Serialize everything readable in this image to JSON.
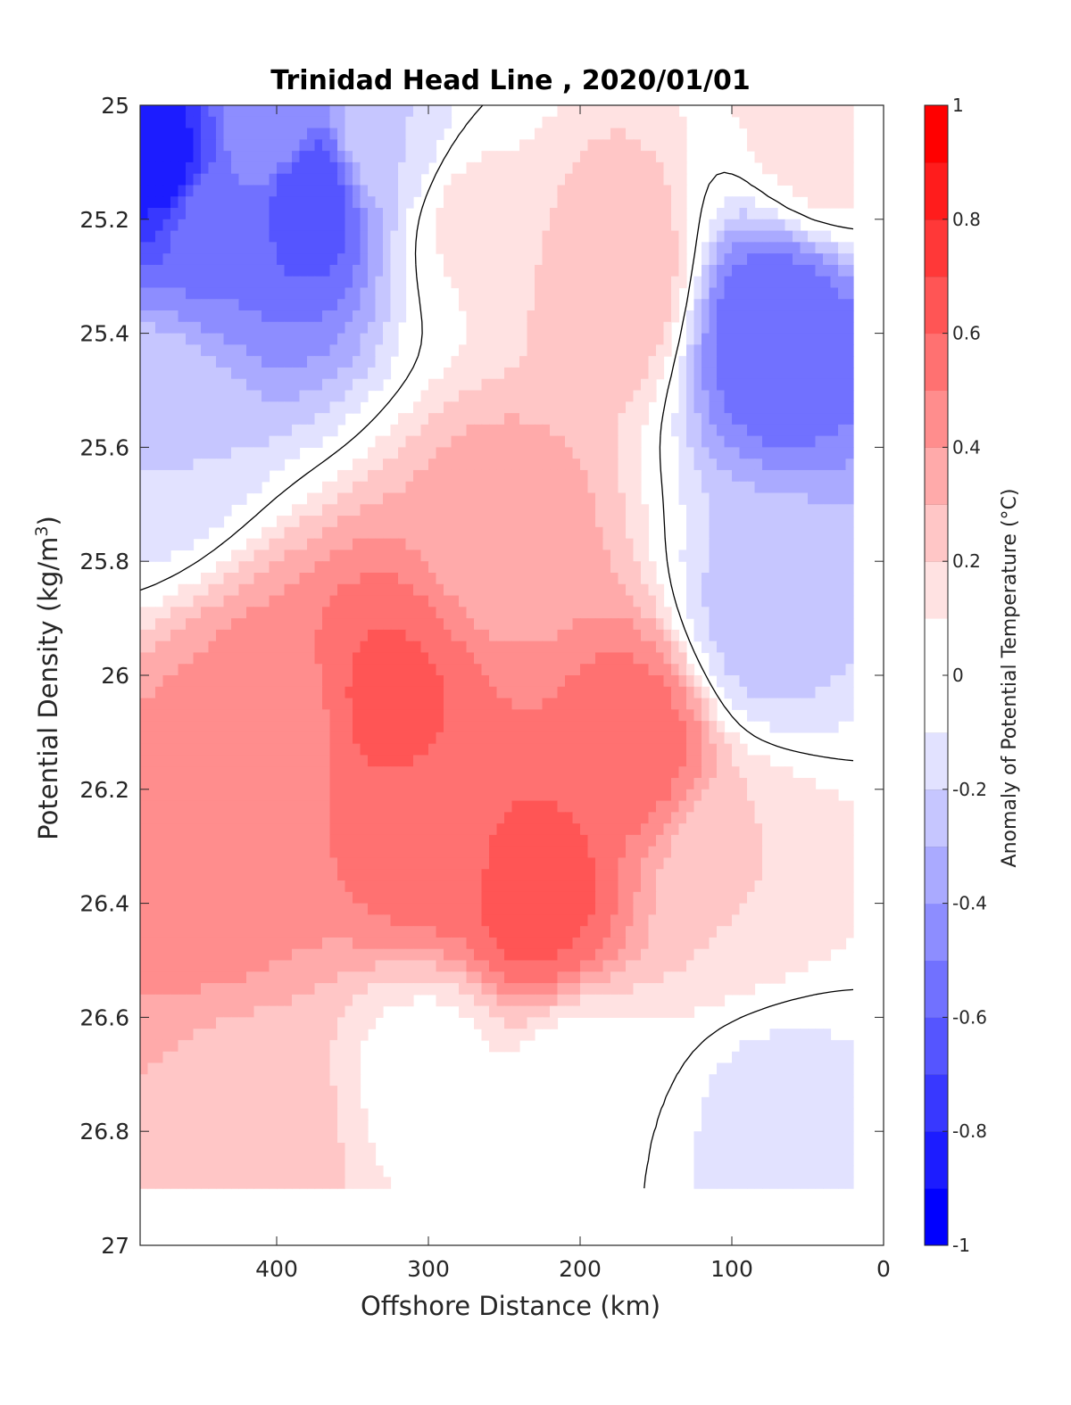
{
  "chart_data": {
    "type": "heatmap",
    "title": "Trinidad Head Line , 2020/01/01",
    "xlabel": "Offshore Distance (km)",
    "ylabel_main": "Potential Density (kg/m",
    "ylabel_sup": "3",
    "ylabel_close": ")",
    "colorbar_label": "Anomaly of Potential Temperature (°C)",
    "xlim": [
      490,
      0
    ],
    "ylim": [
      25,
      27
    ],
    "y_reversed": true,
    "x_ticks": [
      400,
      300,
      200,
      100,
      0
    ],
    "y_ticks": [
      25,
      25.2,
      25.4,
      25.6,
      25.8,
      26,
      26.2,
      26.4,
      26.6,
      26.8,
      27
    ],
    "y_tick_labels": [
      "25",
      "25.2",
      "25.4",
      "25.6",
      "25.8",
      "26",
      "26.2",
      "26.4",
      "26.6",
      "26.8",
      "27"
    ],
    "colorbar_ticks": [
      1,
      0.8,
      0.6,
      0.4,
      0.2,
      0,
      -0.2,
      -0.4,
      -0.6,
      -0.8,
      -1
    ],
    "colorbar_tick_labels": [
      "1",
      "0.8",
      "0.6",
      "0.4",
      "0.2",
      "0",
      "-0.2",
      "-0.4",
      "-0.6",
      "-0.8",
      "-1"
    ],
    "color_levels": [
      -1,
      -0.9,
      -0.8,
      -0.7,
      -0.6,
      -0.5,
      -0.4,
      -0.3,
      -0.2,
      -0.1,
      0.1,
      0.2,
      0.3,
      0.4,
      0.5,
      0.6,
      0.7,
      0.8,
      0.9,
      1
    ],
    "colors": [
      "#0000ff",
      "#1c1cff",
      "#3838ff",
      "#5555ff",
      "#7171ff",
      "#8d8dff",
      "#aaaaff",
      "#c6c6ff",
      "#e2e2ff",
      "#ffffff",
      "#ffe2e2",
      "#ffc6c6",
      "#ffaaaa",
      "#ff8d8d",
      "#ff7171",
      "#ff5555",
      "#ff3838",
      "#ff1c1c",
      "#ff0000"
    ],
    "contour_level": 0,
    "data_x_range": [
      20,
      490
    ],
    "data_y_max": 26.9,
    "anomaly_features": [
      {
        "x": 475,
        "y": 25.1,
        "value": -0.85
      },
      {
        "x": 440,
        "y": 25.2,
        "value": -0.5
      },
      {
        "x": 380,
        "y": 25.15,
        "value": -0.7
      },
      {
        "x": 405,
        "y": 25.05,
        "value": -0.4
      },
      {
        "x": 330,
        "y": 25.05,
        "value": -0.2
      },
      {
        "x": 480,
        "y": 25.55,
        "value": -0.2
      },
      {
        "x": 325,
        "y": 26.05,
        "value": 0.62
      },
      {
        "x": 230,
        "y": 26.38,
        "value": 0.65
      },
      {
        "x": 165,
        "y": 26.12,
        "value": 0.55
      },
      {
        "x": 300,
        "y": 26.3,
        "value": 0.55
      },
      {
        "x": 440,
        "y": 26.3,
        "value": 0.5
      },
      {
        "x": 250,
        "y": 25.75,
        "value": 0.35
      },
      {
        "x": 180,
        "y": 25.3,
        "value": 0.3
      },
      {
        "x": 270,
        "y": 25.2,
        "value": 0.12
      },
      {
        "x": 400,
        "y": 26.1,
        "value": 0.45
      },
      {
        "x": 70,
        "y": 25.4,
        "value": -0.6
      },
      {
        "x": 80,
        "y": 25.9,
        "value": -0.25
      },
      {
        "x": 100,
        "y": 26.35,
        "value": 0.2
      },
      {
        "x": 70,
        "y": 26.8,
        "value": -0.15
      },
      {
        "x": 410,
        "y": 26.8,
        "value": 0.25
      },
      {
        "x": 300,
        "y": 26.7,
        "value": 0.05
      },
      {
        "x": 200,
        "y": 26.75,
        "value": 0.0
      },
      {
        "x": 40,
        "y": 25.05,
        "value": 0.15
      }
    ]
  }
}
